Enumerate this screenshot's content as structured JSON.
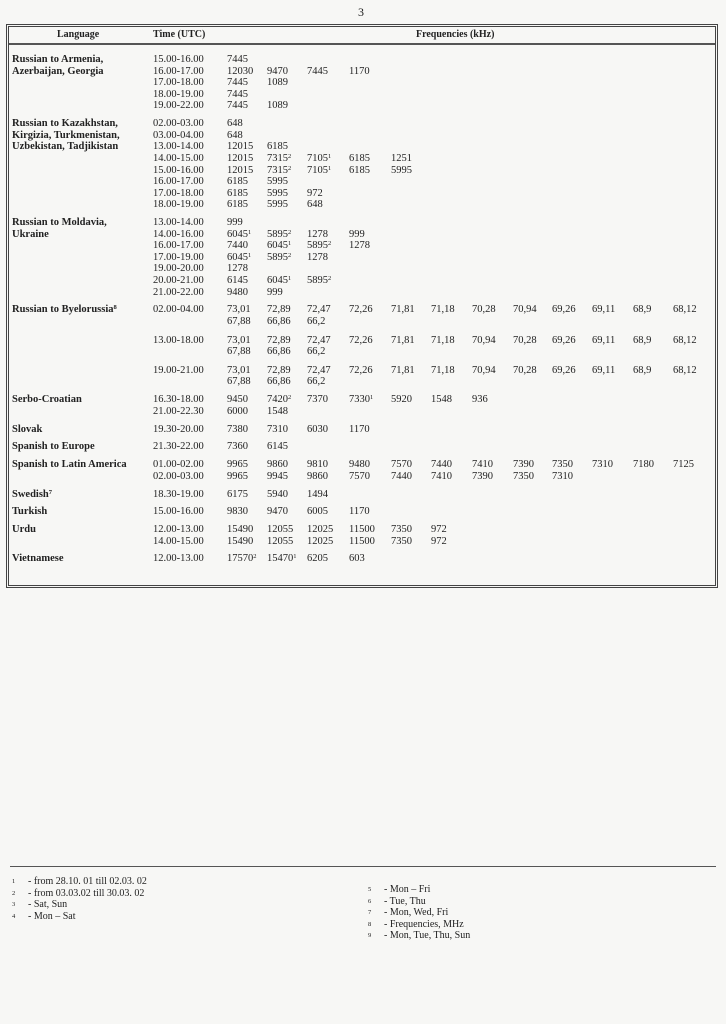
{
  "page_number": "3",
  "headers": {
    "language": "Language",
    "time": "Time (UTC)",
    "frequencies": "Frequencies (kHz)"
  },
  "groups": [
    {
      "language": [
        "Russian  to Armenia,",
        "Azerbaijan, Georgia"
      ],
      "rows": [
        {
          "time": "15.00-16.00",
          "freqs": [
            "7445"
          ]
        },
        {
          "time": "16.00-17.00",
          "freqs": [
            "12030",
            "9470",
            "7445",
            "1170"
          ]
        },
        {
          "time": "17.00-18.00",
          "freqs": [
            "7445",
            "1089"
          ]
        },
        {
          "time": "18.00-19.00",
          "freqs": [
            "7445"
          ]
        },
        {
          "time": "19.00-22.00",
          "freqs": [
            "7445",
            "1089"
          ]
        }
      ]
    },
    {
      "language": [
        "Russian  to Kazakhstan,",
        "Kirgizia, Turkmenistan,",
        "Uzbekistan, Tadjikistan"
      ],
      "rows": [
        {
          "time": "02.00-03.00",
          "freqs": [
            "648"
          ]
        },
        {
          "time": "03.00-04.00",
          "freqs": [
            "648"
          ]
        },
        {
          "time": "13.00-14.00",
          "freqs": [
            "12015",
            "6185"
          ]
        },
        {
          "time": "14.00-15.00",
          "freqs": [
            "12015",
            {
              "v": "7315",
              "sup": "2"
            },
            {
              "v": "7105",
              "sup": "1"
            },
            "6185",
            "1251"
          ]
        },
        {
          "time": "15.00-16.00",
          "freqs": [
            "12015",
            {
              "v": "7315",
              "sup": "2"
            },
            {
              "v": "7105",
              "sup": "1"
            },
            "6185",
            "5995"
          ]
        },
        {
          "time": "16.00-17.00",
          "freqs": [
            "6185",
            "5995"
          ]
        },
        {
          "time": "17.00-18.00",
          "freqs": [
            "6185",
            "5995",
            "972"
          ]
        },
        {
          "time": "18.00-19.00",
          "freqs": [
            "6185",
            "5995",
            "648"
          ]
        }
      ]
    },
    {
      "language": [
        "Russian  to Moldavia,",
        "Ukraine"
      ],
      "rows": [
        {
          "time": "13.00-14.00",
          "freqs": [
            "999"
          ]
        },
        {
          "time": "14.00-16.00",
          "freqs": [
            {
              "v": "6045",
              "sup": "1"
            },
            {
              "v": "5895",
              "sup": "2"
            },
            "1278",
            "999"
          ]
        },
        {
          "time": "16.00-17.00",
          "freqs": [
            "7440",
            {
              "v": "6045",
              "sup": "1"
            },
            {
              "v": "5895",
              "sup": "2"
            },
            "1278"
          ]
        },
        {
          "time": "17.00-19.00",
          "freqs": [
            {
              "v": "6045",
              "sup": "1"
            },
            {
              "v": "5895",
              "sup": "2"
            },
            "1278"
          ]
        },
        {
          "time": "19.00-20.00",
          "freqs": [
            "1278"
          ]
        },
        {
          "time": "20.00-21.00",
          "freqs": [
            "6145",
            {
              "v": "6045",
              "sup": "1"
            },
            {
              "v": "5895",
              "sup": "2"
            }
          ]
        },
        {
          "time": "21.00-22.00",
          "freqs": [
            "9480",
            "999"
          ]
        }
      ]
    },
    {
      "language": [
        "Russian  to Byelorussia"
      ],
      "language_sup": "8",
      "rows": [
        {
          "time": "02.00-04.00",
          "freqs": [
            "73,01",
            "72,89",
            "72,47",
            "72,26",
            "71,81",
            "71,18",
            "70,28",
            "70,94",
            "69,26",
            "69,11",
            "68,9",
            "68,12"
          ]
        },
        {
          "time": "",
          "freqs": [
            "67,88",
            "66,86",
            "66,2"
          ]
        },
        {
          "time": "13.00-18.00",
          "sub": true,
          "freqs": [
            "73,01",
            "72,89",
            "72,47",
            "72,26",
            "71,81",
            "71,18",
            "70,94",
            "70,28",
            "69,26",
            "69,11",
            "68,9",
            "68,12"
          ]
        },
        {
          "time": "",
          "freqs": [
            "67,88",
            "66,86",
            "66,2"
          ]
        },
        {
          "time": "19.00-21.00",
          "sub": true,
          "freqs": [
            "73,01",
            "72,89",
            "72,47",
            "72,26",
            "71,81",
            "71,18",
            "70,94",
            "70,28",
            "69,26",
            "69,11",
            "68,9",
            "68,12"
          ]
        },
        {
          "time": "",
          "freqs": [
            "67,88",
            "66,86",
            "66,2"
          ]
        }
      ]
    },
    {
      "language": [
        "Serbo-Croatian"
      ],
      "rows": [
        {
          "time": "16.30-18.00",
          "freqs": [
            "9450",
            {
              "v": "7420",
              "sup": "2"
            },
            "7370",
            {
              "v": "7330",
              "sup": "1"
            },
            "5920",
            "1548",
            "936"
          ]
        },
        {
          "time": "21.00-22.30",
          "freqs": [
            "6000",
            "1548"
          ]
        }
      ]
    },
    {
      "language": [
        "Slovak"
      ],
      "rows": [
        {
          "time": "19.30-20.00",
          "freqs": [
            "7380",
            "7310",
            "6030",
            "1170"
          ]
        }
      ]
    },
    {
      "language": [
        "Spanish  to Europe"
      ],
      "rows": [
        {
          "time": "21.30-22.00",
          "freqs": [
            "7360",
            "6145"
          ]
        }
      ]
    },
    {
      "language": [
        "Spanish  to Latin America"
      ],
      "rows": [
        {
          "time": "01.00-02.00",
          "freqs": [
            "9965",
            "9860",
            "9810",
            "9480",
            "7570",
            "7440",
            "7410",
            "7390",
            "7350",
            "7310",
            "7180",
            "7125"
          ]
        },
        {
          "time": "02.00-03.00",
          "freqs": [
            "9965",
            "9945",
            "9860",
            "7570",
            "7440",
            "7410",
            "7390",
            "7350",
            "7310"
          ]
        }
      ]
    },
    {
      "language": [
        "Swedish"
      ],
      "language_sup": "7",
      "rows": [
        {
          "time": "18.30-19.00",
          "freqs": [
            "6175",
            "5940",
            "1494"
          ]
        }
      ]
    },
    {
      "language": [
        "Turkish"
      ],
      "rows": [
        {
          "time": "15.00-16.00",
          "freqs": [
            "9830",
            "9470",
            "6005",
            "1170"
          ]
        }
      ]
    },
    {
      "language": [
        "Urdu"
      ],
      "rows": [
        {
          "time": "12.00-13.00",
          "freqs": [
            "15490",
            "12055",
            "12025",
            "11500",
            "7350",
            "972"
          ]
        },
        {
          "time": "14.00-15.00",
          "freqs": [
            "15490",
            "12055",
            "12025",
            "11500",
            "7350",
            "972"
          ]
        }
      ]
    },
    {
      "language": [
        "Vietnamese"
      ],
      "rows": [
        {
          "time": "12.00-13.00",
          "freqs": [
            {
              "v": "17570",
              "sup": "2"
            },
            {
              "v": "15470",
              "sup": "1"
            },
            "6205",
            "603"
          ]
        }
      ]
    }
  ],
  "footnotes_left": [
    {
      "n": "1",
      "text": "- from   28.10. 01 till  02.03. 02"
    },
    {
      "n": "2",
      "text": "- from   03.03.02  till  30.03. 02"
    },
    {
      "n": "3",
      "text": "- Sat, Sun"
    },
    {
      "n": "4",
      "text": "- Mon – Sat"
    }
  ],
  "footnotes_right": [
    {
      "n": "5",
      "text": "- Mon – Fri"
    },
    {
      "n": "6",
      "text": "- Tue, Thu"
    },
    {
      "n": "7",
      "text": "- Mon, Wed, Fri"
    },
    {
      "n": "8",
      "text": "- Frequencies, MHz"
    },
    {
      "n": "9",
      "text": "- Mon, Tue, Thu, Sun"
    }
  ]
}
